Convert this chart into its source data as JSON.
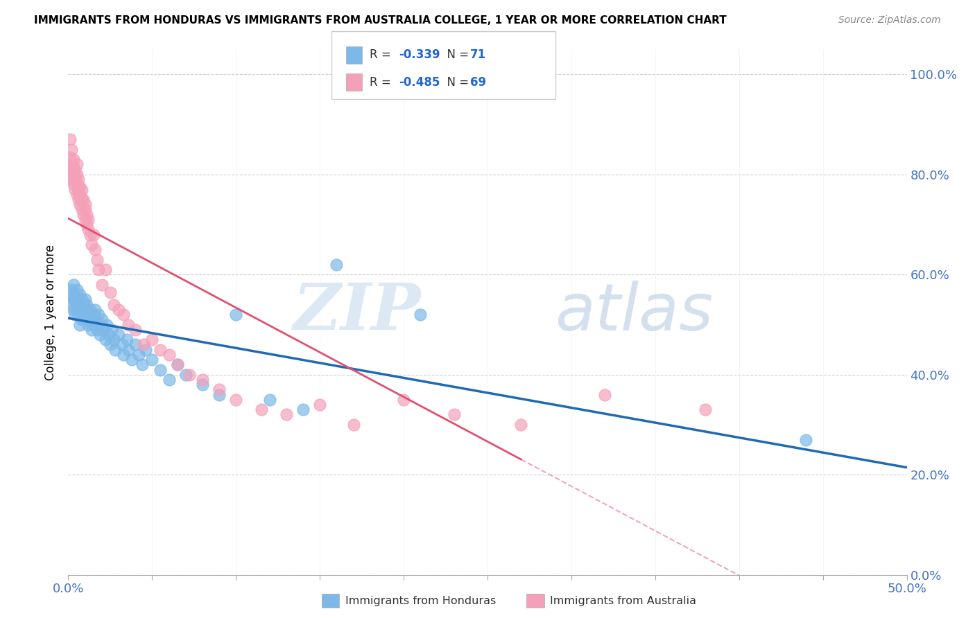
{
  "title": "IMMIGRANTS FROM HONDURAS VS IMMIGRANTS FROM AUSTRALIA COLLEGE, 1 YEAR OR MORE CORRELATION CHART",
  "source": "Source: ZipAtlas.com",
  "ylabel": "College, 1 year or more",
  "legend_honduras": "Immigrants from Honduras",
  "legend_australia": "Immigrants from Australia",
  "r_honduras": "-0.339",
  "n_honduras": "71",
  "r_australia": "-0.485",
  "n_australia": "69",
  "color_honduras": "#7cb8e8",
  "color_australia": "#f4a0b8",
  "color_trendline_honduras": "#1f6ab5",
  "color_trendline_australia": "#e05070",
  "watermark_zip": "ZIP",
  "watermark_atlas": "atlas",
  "xlim": [
    0.0,
    0.5
  ],
  "ylim": [
    0.0,
    1.05
  ],
  "honduras_x": [
    0.001,
    0.002,
    0.002,
    0.003,
    0.003,
    0.003,
    0.004,
    0.004,
    0.004,
    0.005,
    0.005,
    0.005,
    0.006,
    0.006,
    0.007,
    0.007,
    0.007,
    0.008,
    0.008,
    0.008,
    0.009,
    0.009,
    0.01,
    0.01,
    0.01,
    0.011,
    0.012,
    0.012,
    0.013,
    0.014,
    0.014,
    0.015,
    0.015,
    0.016,
    0.016,
    0.017,
    0.018,
    0.018,
    0.019,
    0.02,
    0.021,
    0.022,
    0.023,
    0.024,
    0.025,
    0.026,
    0.027,
    0.028,
    0.03,
    0.032,
    0.033,
    0.035,
    0.036,
    0.038,
    0.04,
    0.042,
    0.044,
    0.046,
    0.05,
    0.055,
    0.06,
    0.065,
    0.07,
    0.08,
    0.09,
    0.1,
    0.12,
    0.14,
    0.16,
    0.21,
    0.44
  ],
  "honduras_y": [
    0.56,
    0.54,
    0.57,
    0.55,
    0.58,
    0.53,
    0.55,
    0.52,
    0.56,
    0.54,
    0.57,
    0.53,
    0.55,
    0.52,
    0.56,
    0.54,
    0.5,
    0.53,
    0.55,
    0.51,
    0.54,
    0.52,
    0.55,
    0.53,
    0.51,
    0.54,
    0.52,
    0.5,
    0.53,
    0.51,
    0.49,
    0.52,
    0.5,
    0.53,
    0.51,
    0.49,
    0.52,
    0.5,
    0.48,
    0.51,
    0.49,
    0.47,
    0.5,
    0.48,
    0.46,
    0.49,
    0.47,
    0.45,
    0.48,
    0.46,
    0.44,
    0.47,
    0.45,
    0.43,
    0.46,
    0.44,
    0.42,
    0.45,
    0.43,
    0.41,
    0.39,
    0.42,
    0.4,
    0.38,
    0.36,
    0.52,
    0.35,
    0.33,
    0.62,
    0.52,
    0.27
  ],
  "australia_x": [
    0.001,
    0.001,
    0.001,
    0.002,
    0.002,
    0.002,
    0.002,
    0.003,
    0.003,
    0.003,
    0.003,
    0.004,
    0.004,
    0.004,
    0.004,
    0.005,
    0.005,
    0.005,
    0.005,
    0.006,
    0.006,
    0.006,
    0.007,
    0.007,
    0.007,
    0.008,
    0.008,
    0.008,
    0.009,
    0.009,
    0.01,
    0.01,
    0.01,
    0.011,
    0.011,
    0.012,
    0.012,
    0.013,
    0.014,
    0.015,
    0.016,
    0.017,
    0.018,
    0.02,
    0.022,
    0.025,
    0.027,
    0.03,
    0.033,
    0.036,
    0.04,
    0.045,
    0.05,
    0.055,
    0.06,
    0.065,
    0.072,
    0.08,
    0.09,
    0.1,
    0.115,
    0.13,
    0.15,
    0.17,
    0.2,
    0.23,
    0.27,
    0.32,
    0.38
  ],
  "australia_y": [
    0.795,
    0.835,
    0.87,
    0.79,
    0.81,
    0.85,
    0.82,
    0.8,
    0.83,
    0.815,
    0.78,
    0.81,
    0.79,
    0.77,
    0.8,
    0.78,
    0.76,
    0.8,
    0.82,
    0.77,
    0.75,
    0.79,
    0.76,
    0.74,
    0.775,
    0.75,
    0.77,
    0.73,
    0.75,
    0.72,
    0.73,
    0.71,
    0.74,
    0.7,
    0.72,
    0.69,
    0.71,
    0.68,
    0.66,
    0.68,
    0.65,
    0.63,
    0.61,
    0.58,
    0.61,
    0.565,
    0.54,
    0.53,
    0.52,
    0.5,
    0.49,
    0.46,
    0.47,
    0.45,
    0.44,
    0.42,
    0.4,
    0.39,
    0.37,
    0.35,
    0.33,
    0.32,
    0.34,
    0.3,
    0.35,
    0.32,
    0.3,
    0.36,
    0.33
  ]
}
